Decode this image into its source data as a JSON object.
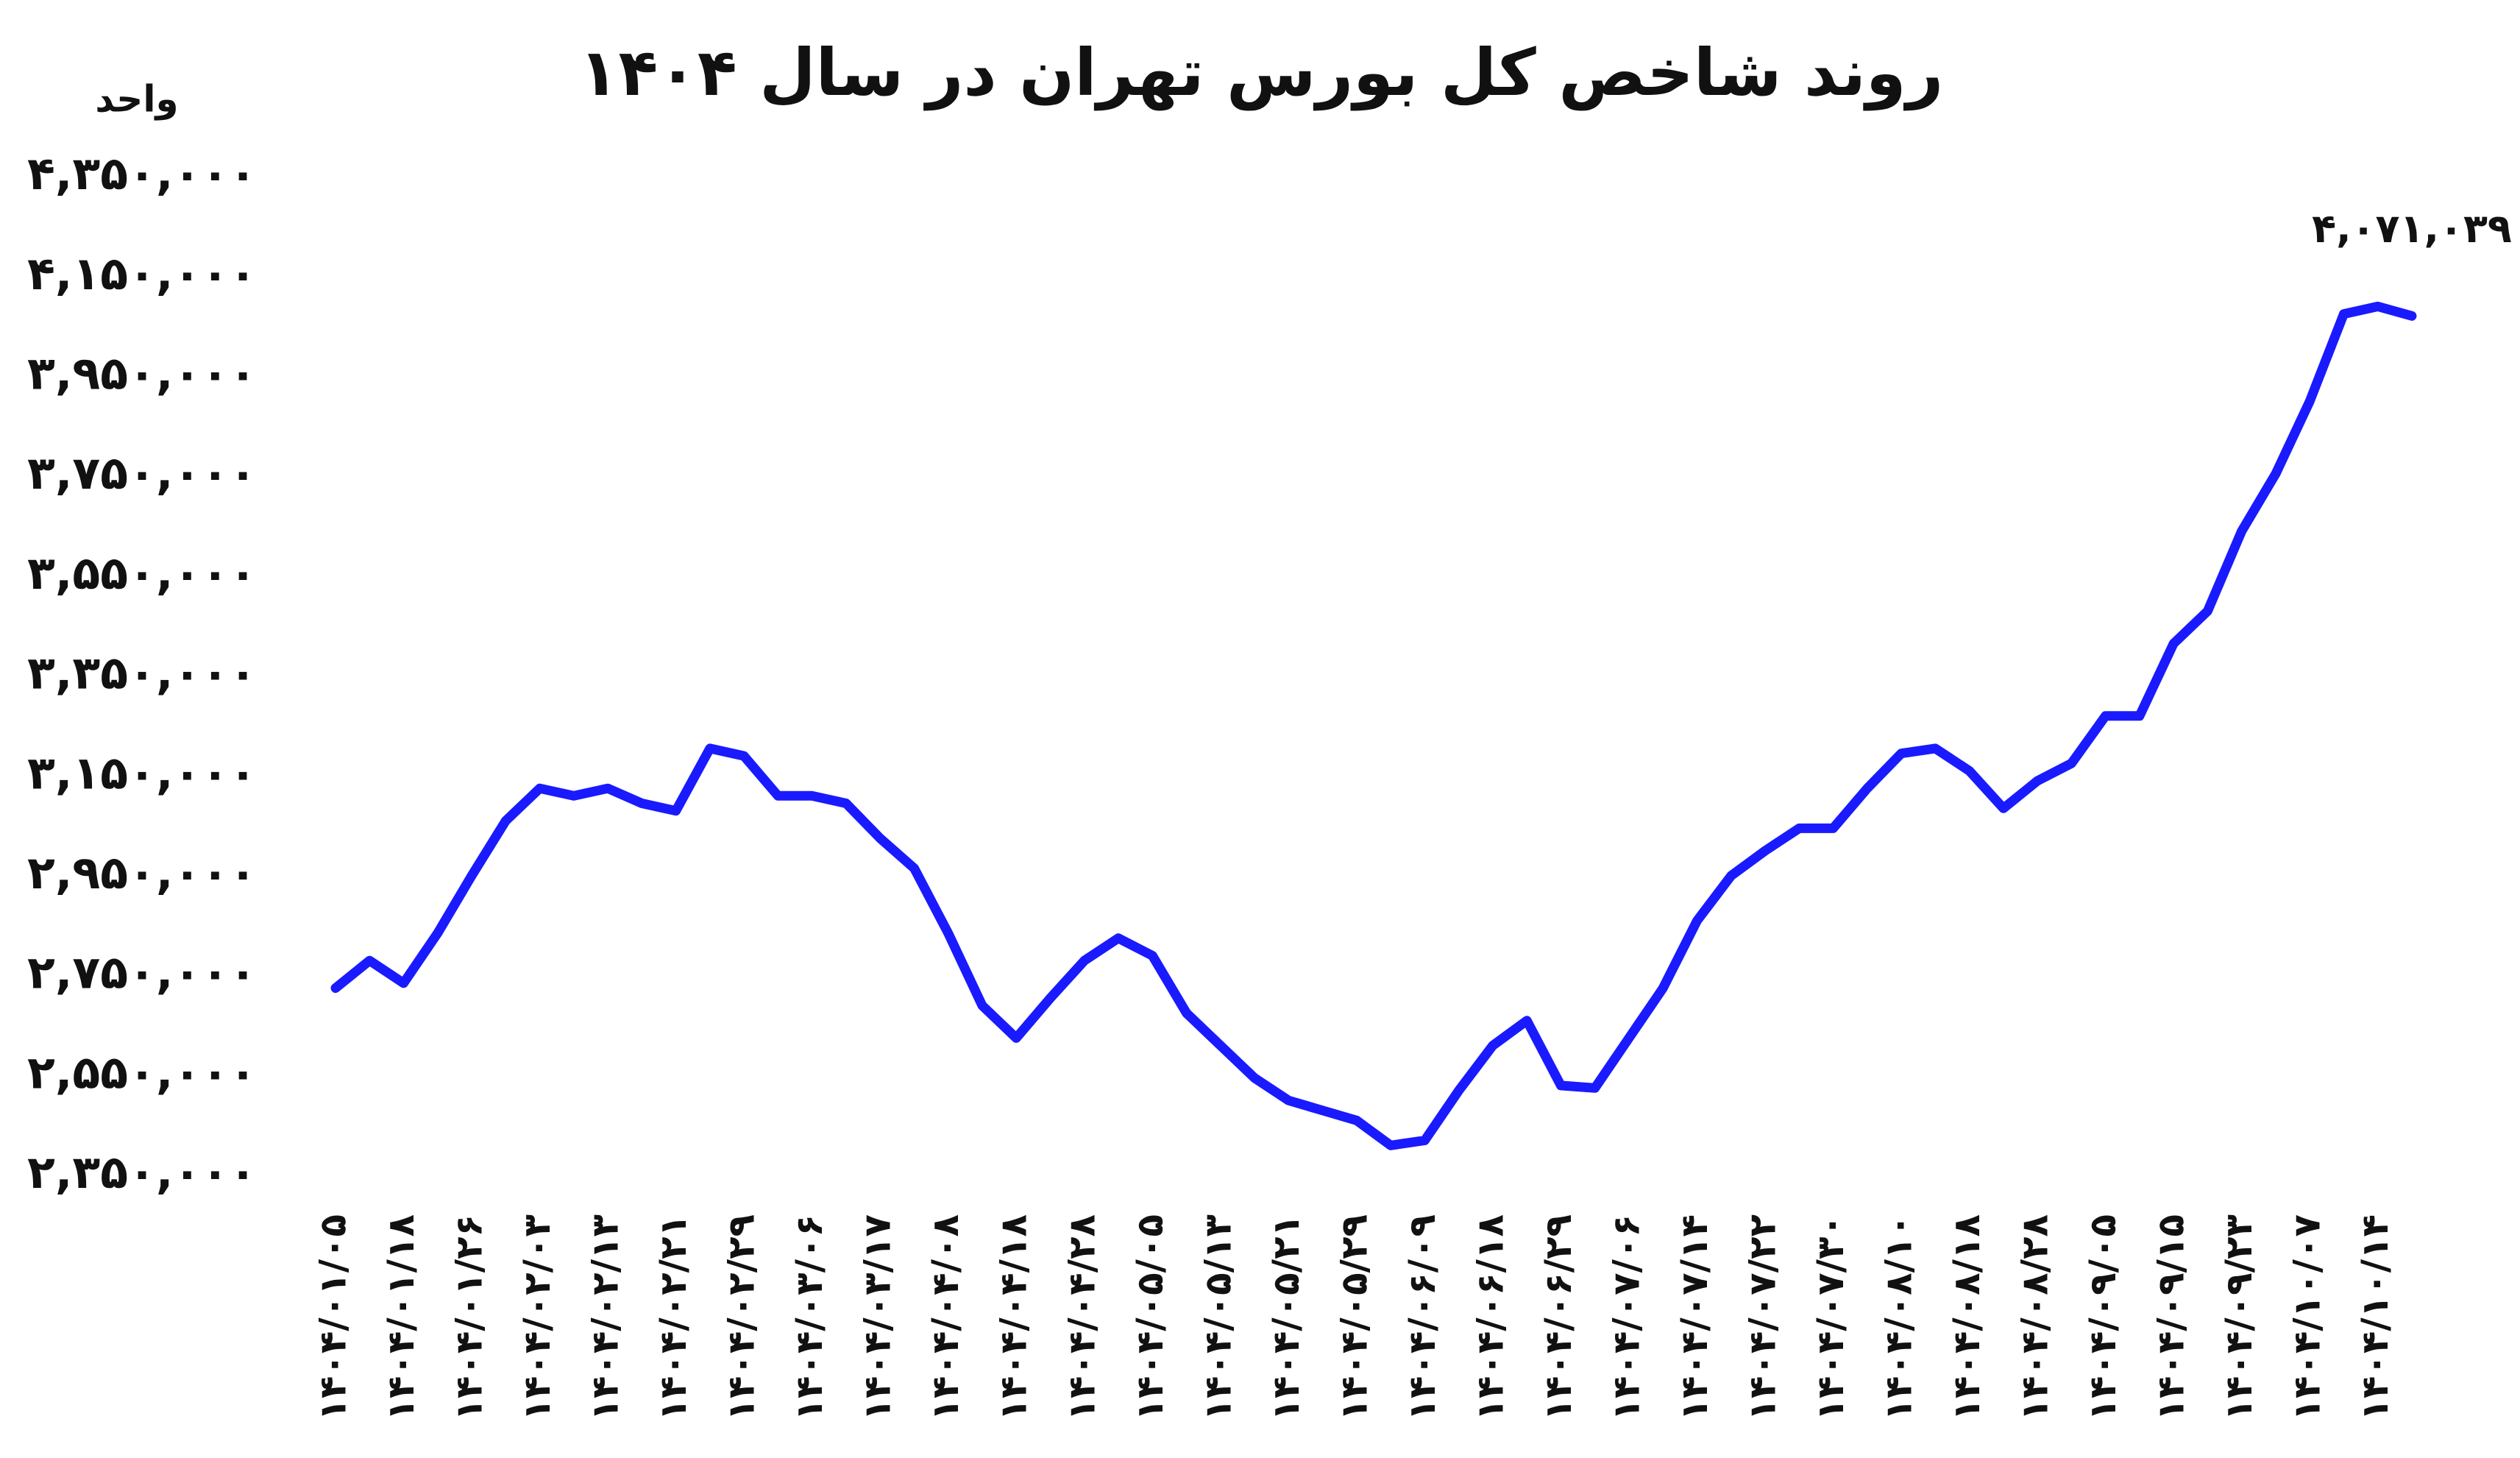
{
  "chart_data": {
    "type": "line",
    "title": "روند شاخص کل بورس تهران در سال ۱۴۰۴",
    "y_label": "واحد",
    "categories": [
      "۱۴۰۴/۰۱/۰۵",
      null,
      "۱۴۰۴/۰۱/۱۸",
      null,
      "۱۴۰۴/۰۱/۲۶",
      null,
      "۱۴۰۴/۰۲/۰۳",
      null,
      "۱۴۰۴/۰۲/۱۳",
      null,
      "۱۴۰۴/۰۲/۲۱",
      null,
      "۱۴۰۴/۰۲/۲۹",
      null,
      "۱۴۰۴/۰۳/۰۶",
      null,
      "۱۴۰۴/۰۳/۱۷",
      null,
      "۱۴۰۴/۰۴/۰۸",
      null,
      "۱۴۰۴/۰۴/۱۸",
      null,
      "۱۴۰۴/۰۴/۲۸",
      null,
      "۱۴۰۴/۰۵/۰۵",
      null,
      "۱۴۰۴/۰۵/۱۳",
      null,
      "۱۴۰۴/۰۵/۲۱",
      null,
      "۱۴۰۴/۰۵/۲۹",
      null,
      "۱۴۰۴/۰۶/۰۹",
      null,
      "۱۴۰۴/۰۶/۱۸",
      null,
      "۱۴۰۴/۰۶/۲۹",
      null,
      "۱۴۰۴/۰۷/۰۶",
      null,
      "۱۴۰۴/۰۷/۱۴",
      null,
      "۱۴۰۴/۰۷/۲۲",
      null,
      "۱۴۰۴/۰۷/۳۰",
      null,
      "۱۴۰۴/۰۸/۱۰",
      null,
      "۱۴۰۴/۰۸/۱۸",
      null,
      "۱۴۰۴/۰۸/۲۸",
      null,
      "۱۴۰۴/۰۹/۰۵",
      null,
      "۱۴۰۴/۰۹/۱۵",
      null,
      "۱۴۰۴/۰۹/۲۳",
      null,
      "۱۴۰۴/۱۰/۰۷",
      null,
      "۱۴۰۴/۱۰/۱۴",
      null
    ],
    "series": [
      {
        "name": null,
        "color": "#1a1aff",
        "values": [
          2725000,
          2780000,
          2735000,
          2835000,
          2950000,
          3060000,
          3125000,
          3110000,
          3125000,
          3095000,
          3080000,
          3205000,
          3190000,
          3110000,
          3110000,
          3095000,
          3025000,
          2965000,
          2835000,
          2690000,
          2625000,
          2705000,
          2780000,
          2825000,
          2790000,
          2675000,
          2610000,
          2545000,
          2500000,
          2480000,
          2460000,
          2410000,
          2420000,
          2520000,
          2610000,
          2660000,
          2530000,
          2525000,
          2625000,
          2725000,
          2860000,
          2950000,
          3000000,
          3045000,
          3045000,
          3125000,
          3195000,
          3205000,
          3160000,
          3085000,
          3140000,
          3175000,
          3270000,
          3270000,
          3415000,
          3480000,
          3640000,
          3755000,
          3900000,
          4075000,
          4090000,
          4071039
        ],
        "value_labels": [
          null,
          null,
          null,
          null,
          null,
          null,
          null,
          null,
          null,
          null,
          null,
          null,
          null,
          null,
          null,
          null,
          null,
          null,
          null,
          null,
          null,
          null,
          null,
          null,
          null,
          null,
          null,
          null,
          null,
          null,
          null,
          null,
          null,
          null,
          null,
          null,
          null,
          null,
          null,
          null,
          null,
          null,
          null,
          null,
          null,
          null,
          null,
          null,
          null,
          null,
          null,
          null,
          null,
          null,
          null,
          null,
          null,
          null,
          null,
          null,
          null,
          "۴,۰۷۱,۰۳۹"
        ]
      }
    ],
    "ylim": [
      2350000,
      4350000
    ],
    "yticks": [
      {
        "value": 2350000,
        "label": "۲,۳۵۰,۰۰۰"
      },
      {
        "value": 2550000,
        "label": "۲,۵۵۰,۰۰۰"
      },
      {
        "value": 2750000,
        "label": "۲,۷۵۰,۰۰۰"
      },
      {
        "value": 2950000,
        "label": "۲,۹۵۰,۰۰۰"
      },
      {
        "value": 3150000,
        "label": "۳,۱۵۰,۰۰۰"
      },
      {
        "value": 3350000,
        "label": "۳,۳۵۰,۰۰۰"
      },
      {
        "value": 3550000,
        "label": "۳,۵۵۰,۰۰۰"
      },
      {
        "value": 3750000,
        "label": "۳,۷۵۰,۰۰۰"
      },
      {
        "value": 3950000,
        "label": "۳,۹۵۰,۰۰۰"
      },
      {
        "value": 4150000,
        "label": "۴,۱۵۰,۰۰۰"
      },
      {
        "value": 4350000,
        "label": "۴,۳۵۰,۰۰۰"
      }
    ],
    "grid": false
  }
}
